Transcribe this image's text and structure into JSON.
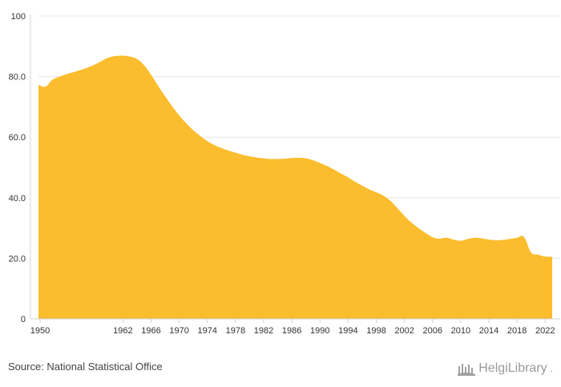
{
  "chart_data": {
    "type": "area",
    "series": [
      {
        "name": "",
        "color": "#FBBD2E",
        "x": [
          1950,
          1951,
          1952,
          1953,
          1954,
          1955,
          1956,
          1957,
          1958,
          1959,
          1960,
          1961,
          1962,
          1963,
          1964,
          1965,
          1966,
          1967,
          1968,
          1969,
          1970,
          1971,
          1972,
          1973,
          1974,
          1975,
          1976,
          1977,
          1978,
          1979,
          1980,
          1981,
          1982,
          1983,
          1984,
          1985,
          1986,
          1987,
          1988,
          1989,
          1990,
          1991,
          1992,
          1993,
          1994,
          1995,
          1996,
          1997,
          1998,
          1999,
          2000,
          2001,
          2002,
          2003,
          2004,
          2005,
          2006,
          2007,
          2008,
          2009,
          2010,
          2011,
          2012,
          2013,
          2014,
          2015,
          2016,
          2017,
          2018,
          2019,
          2020,
          2021,
          2022,
          2023
        ],
        "values": [
          77.3,
          76.7,
          79.0,
          80.0,
          80.8,
          81.5,
          82.2,
          83.0,
          84.0,
          85.2,
          86.3,
          86.8,
          86.9,
          86.6,
          85.8,
          83.8,
          80.6,
          77.0,
          73.5,
          70.2,
          67.2,
          64.6,
          62.3,
          60.4,
          58.7,
          57.4,
          56.4,
          55.6,
          54.9,
          54.2,
          53.7,
          53.3,
          53.0,
          52.8,
          52.8,
          52.9,
          53.1,
          53.2,
          53.0,
          52.4,
          51.5,
          50.5,
          49.3,
          48.0,
          46.7,
          45.3,
          44.0,
          42.8,
          41.8,
          40.7,
          39.0,
          36.6,
          34.0,
          31.8,
          30.0,
          28.4,
          27.0,
          26.5,
          26.8,
          26.2,
          25.8,
          26.4,
          26.8,
          26.6,
          26.2,
          26.0,
          26.1,
          26.4,
          26.8,
          27.0,
          22.0,
          21.2,
          20.6,
          20.5
        ]
      }
    ],
    "x_ticks": [
      "1950",
      "1962",
      "1966",
      "1970",
      "1974",
      "1978",
      "1982",
      "1986",
      "1990",
      "1994",
      "1998",
      "2002",
      "2006",
      "2010",
      "2014",
      "2018",
      "2022"
    ],
    "y_ticks": [
      "0",
      "20.0",
      "40.0",
      "60.0",
      "80.0",
      "100"
    ],
    "xlim": [
      1950,
      2023
    ],
    "ylim": [
      0,
      100
    ],
    "grid": true,
    "title": "",
    "xlabel": "",
    "ylabel": ""
  },
  "footer": {
    "source": "Source: National Statistical Office",
    "brand": "HelgiLibrary",
    "brand_suffix": "."
  }
}
